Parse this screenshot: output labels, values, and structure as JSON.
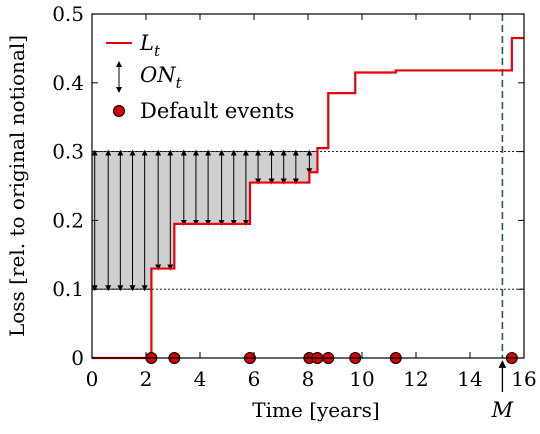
{
  "chart_data": {
    "type": "line",
    "xlabel": "Time [years]",
    "ylabel": "Loss [rel. to original notional]",
    "xlim": [
      0,
      16
    ],
    "ylim": [
      0,
      0.5
    ],
    "x_ticks": [
      "0",
      "2",
      "4",
      "6",
      "8",
      "10",
      "12",
      "14",
      "16"
    ],
    "y_ticks": [
      "0",
      "0.1",
      "0.2",
      "0.3",
      "0.4",
      "0.5"
    ],
    "grid": false,
    "legend_position": "top-left",
    "series": [
      {
        "name": "L_t",
        "kind": "step",
        "color": "#e8000b",
        "points": [
          [
            0,
            0
          ],
          [
            2.2,
            0
          ],
          [
            2.2,
            0.13
          ],
          [
            3.05,
            0.13
          ],
          [
            3.05,
            0.195
          ],
          [
            5.85,
            0.195
          ],
          [
            5.85,
            0.255
          ],
          [
            8.05,
            0.255
          ],
          [
            8.05,
            0.27
          ],
          [
            8.35,
            0.27
          ],
          [
            8.35,
            0.305
          ],
          [
            8.75,
            0.305
          ],
          [
            8.75,
            0.385
          ],
          [
            9.75,
            0.385
          ],
          [
            9.75,
            0.415
          ],
          [
            11.25,
            0.415
          ],
          [
            11.25,
            0.418
          ],
          [
            15.55,
            0.418
          ],
          [
            15.55,
            0.465
          ],
          [
            16,
            0.465
          ]
        ]
      },
      {
        "name": "ON_t",
        "kind": "tranche-band",
        "attachment": 0.1,
        "detachment": 0.3,
        "arrow_x": [
          0.1,
          0.6,
          1.05,
          1.5,
          1.95,
          2.45,
          2.9,
          3.4,
          3.85,
          4.3,
          4.8,
          5.25,
          5.7,
          6.15,
          6.65,
          7.1,
          7.55,
          8.05
        ]
      },
      {
        "name": "Default events",
        "kind": "events",
        "color": "#d40000",
        "x": [
          2.2,
          3.05,
          5.85,
          8.05,
          8.35,
          8.75,
          9.75,
          11.25,
          15.55
        ]
      }
    ],
    "maturity": {
      "label": "M",
      "x": 15.2,
      "color": "#1f5c3a"
    }
  },
  "legend": {
    "line_label_main": "L",
    "line_label_sub": "t",
    "arrow_label_main": "ON",
    "arrow_label_sub": "t",
    "events_label": "Default events"
  }
}
